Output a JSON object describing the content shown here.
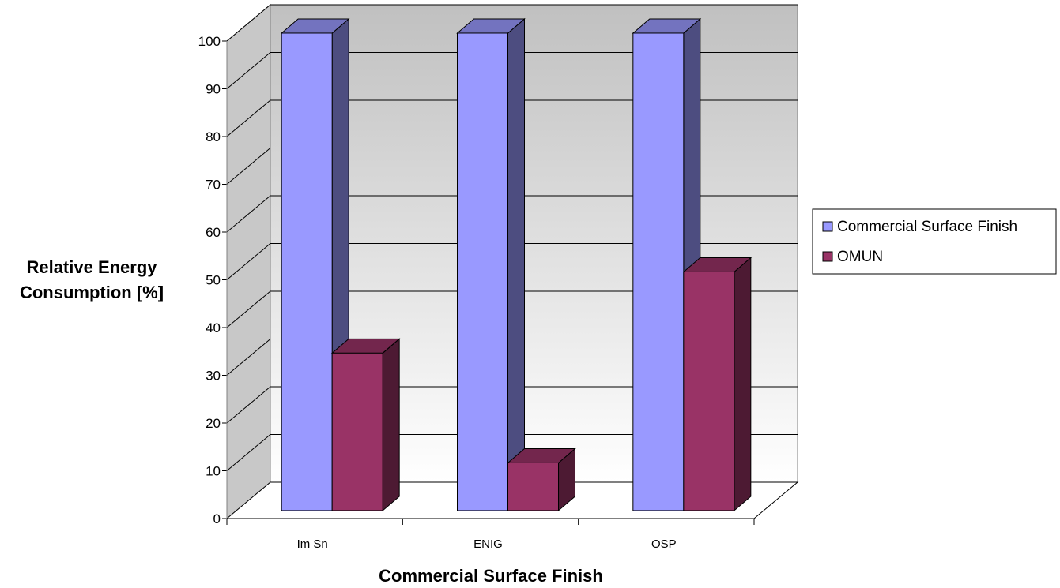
{
  "chart_data": {
    "type": "bar",
    "style": "3d-clustered-column",
    "categories": [
      "Im Sn",
      "ENIG",
      "OSP"
    ],
    "series": [
      {
        "name": "Commercial Surface Finish",
        "values": [
          100,
          100,
          100
        ]
      },
      {
        "name": "OMUN",
        "values": [
          33,
          10,
          50
        ]
      }
    ],
    "title": "",
    "xlabel": "Commercial Surface Finish",
    "ylabel_lines": [
      "Relative Energy",
      "Consumption [%]"
    ],
    "ylim": [
      0,
      100
    ],
    "yticks": [
      "0",
      "10",
      "20",
      "30",
      "40",
      "50",
      "60",
      "70",
      "80",
      "90",
      "100"
    ],
    "grid": true,
    "legend_position": "right",
    "colors": {
      "series_front": [
        "#9999ff",
        "#993366"
      ],
      "series_side": [
        "#4d4d80",
        "#4d1a33"
      ],
      "series_top": [
        "#7373bf",
        "#73264d"
      ],
      "wall_top": "#c0c0c0",
      "wall_bottom": "#ffffff",
      "outline": "#000000"
    }
  }
}
